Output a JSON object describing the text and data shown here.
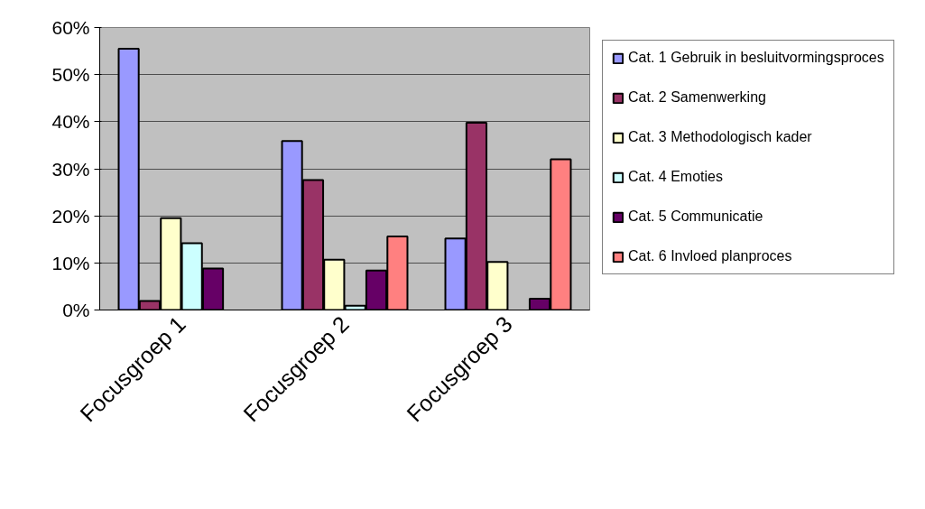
{
  "chart_data": {
    "type": "bar",
    "categories": [
      "Focusgroep 1",
      "Focusgroep 2",
      "Focusgroep 3"
    ],
    "series": [
      {
        "name": "Cat. 1 Gebruik in besluitvormingsproces",
        "color": "#9999ff",
        "values": [
          55.5,
          35.9,
          15.2
        ]
      },
      {
        "name": "Cat. 2 Samenwerking",
        "color": "#993366",
        "values": [
          1.9,
          27.6,
          39.8
        ]
      },
      {
        "name": "Cat. 3 Methodologisch kader",
        "color": "#ffffcc",
        "values": [
          19.5,
          10.7,
          10.2
        ]
      },
      {
        "name": "Cat. 4 Emoties",
        "color": "#ccffff",
        "values": [
          14.2,
          0.9,
          null
        ]
      },
      {
        "name": "Cat. 5 Communicatie",
        "color": "#660066",
        "values": [
          8.8,
          8.4,
          2.4
        ]
      },
      {
        "name": "Cat. 6 Invloed planproces",
        "color": "#ff8080",
        "values": [
          null,
          15.6,
          32.0
        ]
      }
    ],
    "ylim": [
      0,
      60
    ],
    "yticks": [
      {
        "value": 0,
        "label": "0%"
      },
      {
        "value": 10,
        "label": "10%"
      },
      {
        "value": 20,
        "label": "20%"
      },
      {
        "value": 30,
        "label": "30%"
      },
      {
        "value": 40,
        "label": "40%"
      },
      {
        "value": 50,
        "label": "50%"
      },
      {
        "value": 60,
        "label": "60%"
      }
    ],
    "grid": "y",
    "legend": "right"
  }
}
